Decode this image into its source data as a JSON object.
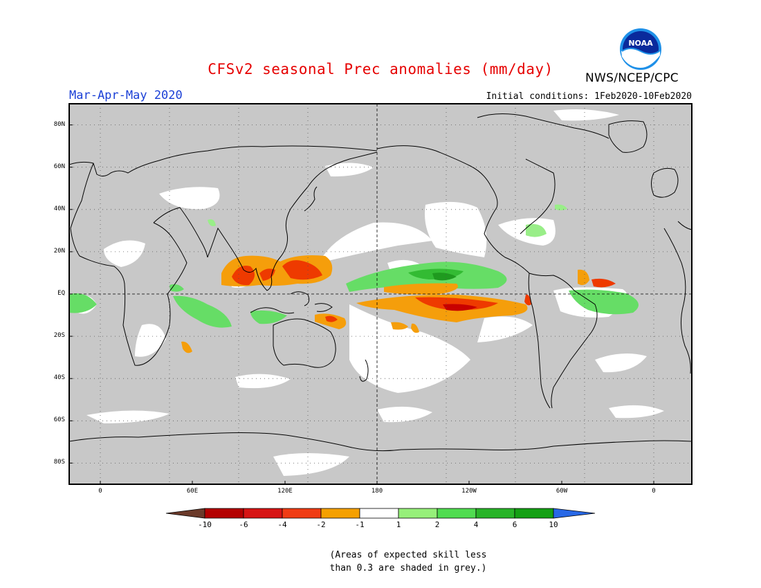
{
  "header": {
    "title": "CFSv2 seasonal Prec anomalies (mm/day)",
    "season": "Mar-Apr-May 2020",
    "initial_conditions": "Initial conditions: 1Feb2020-10Feb2020",
    "agency": "NWS/NCEP/CPC",
    "logo_text": "NOAA"
  },
  "map": {
    "projection": "cylindrical equidistant",
    "grid": "dotted",
    "lat_labels": [
      "80N",
      "60N",
      "40N",
      "20N",
      "EQ",
      "20S",
      "40S",
      "60S",
      "80S"
    ],
    "lon_labels": [
      "0",
      "60E",
      "120E",
      "180",
      "120W",
      "60W",
      "0"
    ],
    "colors": {
      "skill_mask_grey": "#c8c8c8",
      "coast": "#000000",
      "dry": "#f59e0b",
      "dry_strong": "#ee3a00",
      "wet": "#66dd66",
      "wet_strong": "#22aa22"
    }
  },
  "colorbar": {
    "labels": [
      "-10",
      "-6",
      "-4",
      "-2",
      "-1",
      "1",
      "2",
      "4",
      "6",
      "10"
    ],
    "colors": [
      "#6b3a2a",
      "#b40000",
      "#d71414",
      "#f03c14",
      "#f5a000",
      "#ffffff",
      "#96f07a",
      "#50dc50",
      "#28b428",
      "#14a014",
      "#2868e6"
    ]
  },
  "note": {
    "line1": "(Areas of expected skill less",
    "line2": "than 0.3 are shaded in grey.)"
  }
}
